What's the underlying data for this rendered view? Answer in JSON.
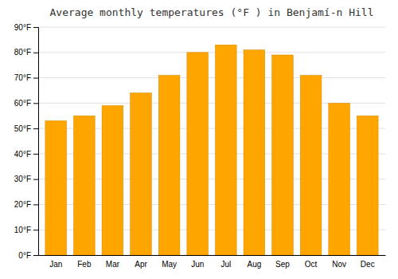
{
  "chart_data": {
    "type": "bar",
    "title": "Average monthly temperatures (°F ) in Benjamí-n Hill",
    "categories": [
      "Jan",
      "Feb",
      "Mar",
      "Apr",
      "May",
      "Jun",
      "Jul",
      "Aug",
      "Sep",
      "Oct",
      "Nov",
      "Dec"
    ],
    "values": [
      53,
      55,
      59,
      64,
      71,
      80,
      83,
      81,
      79,
      71,
      60,
      55
    ],
    "color": "#FFA500",
    "ylim": [
      0,
      90
    ],
    "yticks": [
      {
        "value": 0,
        "label": "0°F"
      },
      {
        "value": 10,
        "label": "10°F"
      },
      {
        "value": 20,
        "label": "20°F"
      },
      {
        "value": 30,
        "label": "30°F"
      },
      {
        "value": 40,
        "label": "40°F"
      },
      {
        "value": 50,
        "label": "50°F"
      },
      {
        "value": 60,
        "label": "60°F"
      },
      {
        "value": 70,
        "label": "70°F"
      },
      {
        "value": 80,
        "label": "80°F"
      },
      {
        "value": 90,
        "label": "90°F"
      }
    ],
    "grid": true
  }
}
